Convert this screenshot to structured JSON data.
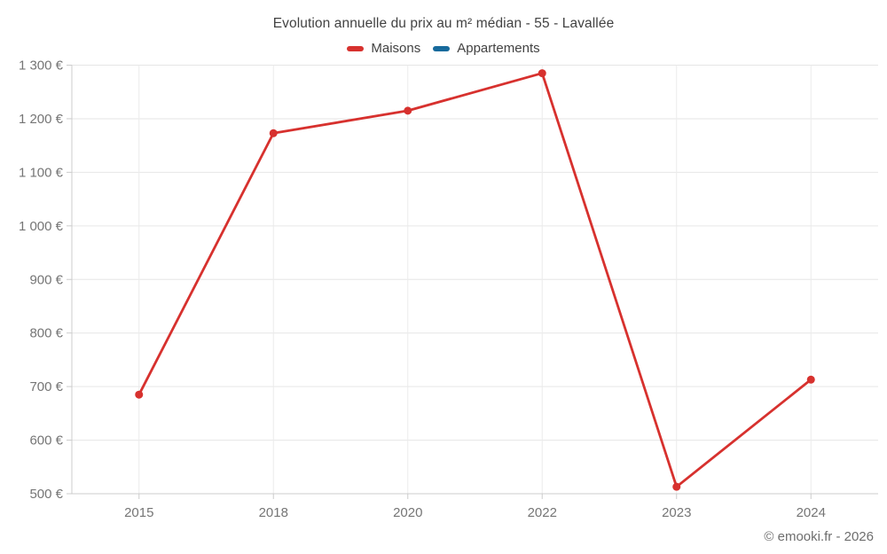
{
  "title": "Evolution annuelle du prix au m² médian - 55 - Lavallée",
  "legend": {
    "items": [
      {
        "label": "Maisons",
        "color": "#d7312e"
      },
      {
        "label": "Appartements",
        "color": "#176a9c"
      }
    ]
  },
  "footer": {
    "copyright": "© emooki.fr - 2026"
  },
  "chart_data": {
    "type": "line",
    "title": "Evolution annuelle du prix au m² médian - 55 - Lavallée",
    "categories": [
      "2015",
      "2018",
      "2020",
      "2022",
      "2023",
      "2024"
    ],
    "series": [
      {
        "name": "Maisons",
        "color": "#d7312e",
        "values": [
          685,
          1173,
          1215,
          1285,
          513,
          713
        ]
      },
      {
        "name": "Appartements",
        "color": "#176a9c",
        "values": []
      }
    ],
    "xlabel": "",
    "ylabel": "",
    "ylim": [
      500,
      1300
    ],
    "ytick_step": 100,
    "ytick_suffix": " €",
    "grid": true,
    "legend_position": "top",
    "point_radius": 4.5,
    "line_width": 2.8
  }
}
